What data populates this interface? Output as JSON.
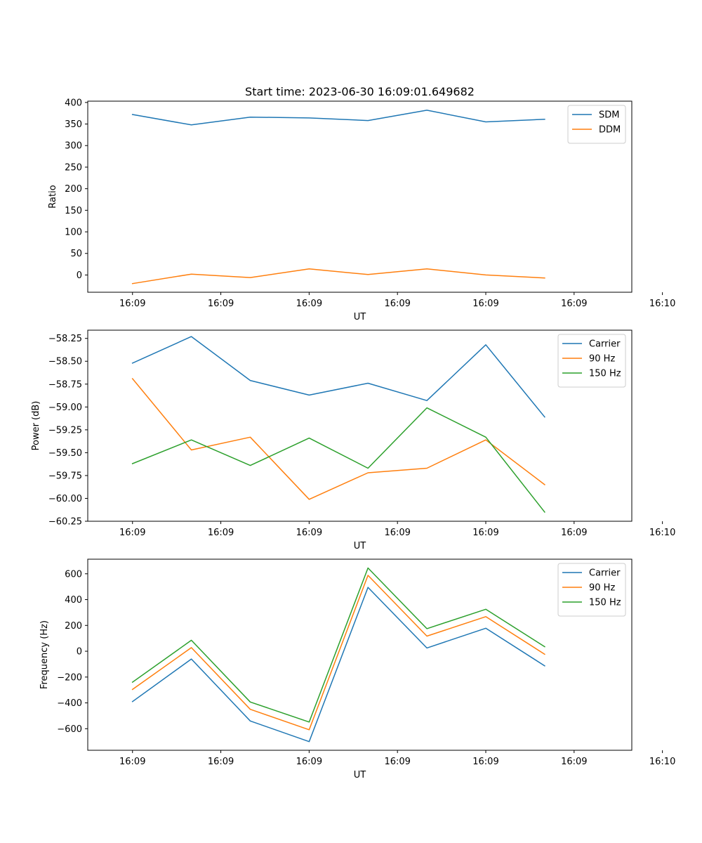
{
  "figure_title": "Start time: 2023-06-30 16:09:01.649682",
  "chart_data": [
    {
      "type": "line",
      "title": "Start time: 2023-06-30 16:09:01.649682",
      "xlabel": "UT",
      "ylabel": "Ratio",
      "x": [
        "16:09:01.65",
        "16:09:04.15",
        "16:09:06.65",
        "16:09:09.15",
        "16:09:11.65",
        "16:09:14.15",
        "16:09:16.65",
        "16:09:19.15"
      ],
      "xlim": [
        -1.9,
        21.2
      ],
      "x_ticks": [
        0.0,
        3.75,
        7.5,
        11.25,
        15.0,
        18.75,
        22.5
      ],
      "x_tick_labels": [
        "16:09",
        "16:09",
        "16:09",
        "16:09",
        "16:09",
        "16:09",
        "16:10"
      ],
      "ylim": [
        -40,
        403
      ],
      "y_ticks": [
        400,
        350,
        300,
        250,
        200,
        150,
        100,
        50,
        0
      ],
      "y_tick_labels": [
        "400",
        "350",
        "300",
        "250",
        "200",
        "150",
        "100",
        "50",
        "0"
      ],
      "legend_position": "upper-right",
      "series": [
        {
          "name": "SDM",
          "color": "#1f77b4",
          "values": [
            372,
            348,
            366,
            364,
            358,
            382,
            355,
            361
          ]
        },
        {
          "name": "DDM",
          "color": "#ff7f0e",
          "values": [
            -20,
            2,
            -6,
            14,
            1,
            14,
            0,
            -7
          ]
        }
      ]
    },
    {
      "type": "line",
      "title": "",
      "xlabel": "UT",
      "ylabel": "Power (dB)",
      "x": [
        "16:09:01.65",
        "16:09:04.15",
        "16:09:06.65",
        "16:09:09.15",
        "16:09:11.65",
        "16:09:14.15",
        "16:09:16.65",
        "16:09:19.15"
      ],
      "xlim": [
        -1.9,
        21.2
      ],
      "x_ticks": [
        0.0,
        3.75,
        7.5,
        11.25,
        15.0,
        18.75,
        22.5
      ],
      "x_tick_labels": [
        "16:09",
        "16:09",
        "16:09",
        "16:09",
        "16:09",
        "16:09",
        "16:10"
      ],
      "ylim": [
        -60.25,
        -58.16
      ],
      "y_ticks": [
        -58.25,
        -58.5,
        -58.75,
        -59.0,
        -59.25,
        -59.5,
        -59.75,
        -60.0,
        -60.25
      ],
      "y_tick_labels": [
        "−58.25",
        "−58.50",
        "−58.75",
        "−59.00",
        "−59.25",
        "−59.50",
        "−59.75",
        "−60.00",
        "−60.25"
      ],
      "legend_position": "upper-right",
      "series": [
        {
          "name": "Carrier",
          "color": "#1f77b4",
          "values": [
            -58.52,
            -58.23,
            -58.71,
            -58.87,
            -58.74,
            -58.93,
            -58.32,
            -59.11
          ]
        },
        {
          "name": "90 Hz",
          "color": "#ff7f0e",
          "values": [
            -58.69,
            -59.47,
            -59.33,
            -60.01,
            -59.72,
            -59.67,
            -59.36,
            -59.85
          ]
        },
        {
          "name": "150 Hz",
          "color": "#2ca02c",
          "values": [
            -59.62,
            -59.36,
            -59.64,
            -59.34,
            -59.67,
            -59.01,
            -59.33,
            -60.15
          ]
        }
      ]
    },
    {
      "type": "line",
      "title": "",
      "xlabel": "UT",
      "ylabel": "Frequency (Hz)",
      "x": [
        "16:09:01.65",
        "16:09:04.15",
        "16:09:06.65",
        "16:09:09.15",
        "16:09:11.65",
        "16:09:14.15",
        "16:09:16.65",
        "16:09:19.15"
      ],
      "xlim": [
        -1.9,
        21.2
      ],
      "x_ticks": [
        0.0,
        3.75,
        7.5,
        11.25,
        15.0,
        18.75,
        22.5
      ],
      "x_tick_labels": [
        "16:09",
        "16:09",
        "16:09",
        "16:09",
        "16:09",
        "16:09",
        "16:10"
      ],
      "ylim": [
        -767,
        713
      ],
      "y_ticks": [
        600,
        400,
        200,
        0,
        -200,
        -400,
        -600
      ],
      "y_tick_labels": [
        "600",
        "400",
        "200",
        "0",
        "−200",
        "−400",
        "−600"
      ],
      "legend_position": "upper-right",
      "series": [
        {
          "name": "Carrier",
          "color": "#1f77b4",
          "values": [
            -390,
            -60,
            -540,
            -700,
            495,
            25,
            178,
            -113
          ]
        },
        {
          "name": "90 Hz",
          "color": "#ff7f0e",
          "values": [
            -296,
            28,
            -450,
            -608,
            588,
            117,
            268,
            -23
          ]
        },
        {
          "name": "150 Hz",
          "color": "#2ca02c",
          "values": [
            -240,
            85,
            -393,
            -548,
            645,
            175,
            325,
            35
          ]
        }
      ]
    }
  ]
}
